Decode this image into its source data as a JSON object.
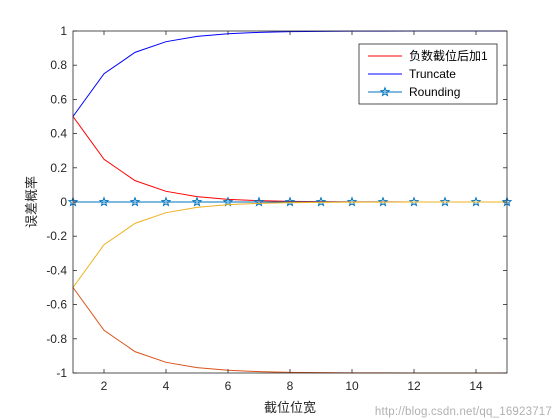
{
  "chart_data": {
    "type": "line",
    "title": "",
    "xlabel": "截位位宽",
    "ylabel": "误差概率",
    "xlim": [
      1,
      15
    ],
    "ylim": [
      -1,
      1
    ],
    "xticks": [
      2,
      4,
      6,
      8,
      10,
      12,
      14
    ],
    "yticks": [
      -1,
      -0.8,
      -0.6,
      -0.4,
      -0.2,
      0,
      0.2,
      0.4,
      0.6,
      0.8,
      1
    ],
    "ytick_labels": [
      "-1",
      "-0.8",
      "-0.6",
      "-0.4",
      "-0.2",
      "0",
      "0.2",
      "0.4",
      "0.6",
      "0.8",
      "1"
    ],
    "grid": false,
    "legend_position": "top-right",
    "x": [
      1,
      2,
      3,
      4,
      5,
      6,
      7,
      8,
      9,
      10,
      11,
      12,
      13,
      14,
      15
    ],
    "series": [
      {
        "name": "负数截位后加1",
        "color": "#ff0000",
        "marker": "none",
        "values": [
          0.5,
          0.25,
          0.125,
          0.0625,
          0.03125,
          0.015625,
          0.0078,
          0.0039,
          0.002,
          0.001,
          0.0005,
          0.0002,
          0.0001,
          0.0001,
          0.0
        ]
      },
      {
        "name": "Truncate",
        "color": "#0000ff",
        "marker": "none",
        "values": [
          0.5,
          0.75,
          0.875,
          0.9375,
          0.96875,
          0.984,
          0.992,
          0.996,
          0.998,
          0.999,
          0.9995,
          0.9998,
          0.9999,
          0.9999,
          1.0
        ]
      },
      {
        "name": "Rounding",
        "color": "#0072bd",
        "marker": "star",
        "values": [
          0,
          0,
          0,
          0,
          0,
          0,
          0,
          0,
          0,
          0,
          0,
          0,
          0,
          0,
          0
        ]
      },
      {
        "name": "",
        "color": "#edb120",
        "marker": "none",
        "values": [
          -0.5,
          -0.25,
          -0.125,
          -0.0625,
          -0.03125,
          -0.015625,
          -0.0078,
          -0.0039,
          -0.002,
          -0.001,
          -0.0005,
          -0.0002,
          -0.0001,
          -0.0001,
          0.0
        ]
      },
      {
        "name": "",
        "color": "#d95319",
        "marker": "none",
        "values": [
          -0.5,
          -0.75,
          -0.875,
          -0.9375,
          -0.96875,
          -0.984,
          -0.992,
          -0.996,
          -0.998,
          -0.999,
          -0.9995,
          -0.9998,
          -0.9999,
          -0.9999,
          -1.0
        ]
      }
    ]
  },
  "watermark": "http://blog.csdn.net/qq_16923717"
}
